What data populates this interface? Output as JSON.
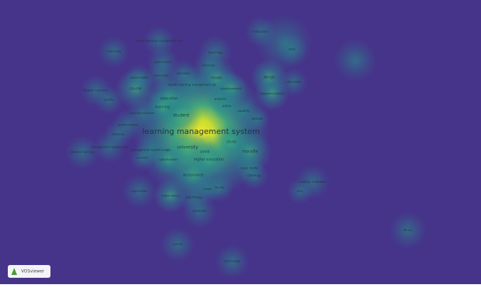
{
  "terms": [
    "learning management system",
    "student",
    "university",
    "covid",
    "study",
    "moodle",
    "higher education",
    "satisfaction",
    "education",
    "learning",
    "course",
    "model",
    "development",
    "design",
    "implementation",
    "process",
    "teaching",
    "acceptance",
    "experience",
    "self-efficacy",
    "usage",
    "faculty",
    "case study",
    "challenge",
    "online",
    "analysis",
    "usability",
    "attitude",
    "performance",
    "influence",
    "innovation",
    "utilization",
    "assessment",
    "e-learning",
    "integration",
    "style",
    "interaction",
    "blended learning",
    "management system use",
    "management system usage",
    "success",
    "learning outcome",
    "social media",
    "moodle learning management sys",
    "online learning management sys",
    "application",
    "usability evaluation",
    "user",
    "system",
    "pandemic",
    "library",
    "flipped classroom",
    "quality",
    "technology"
  ],
  "logo": "VOSviewer"
}
